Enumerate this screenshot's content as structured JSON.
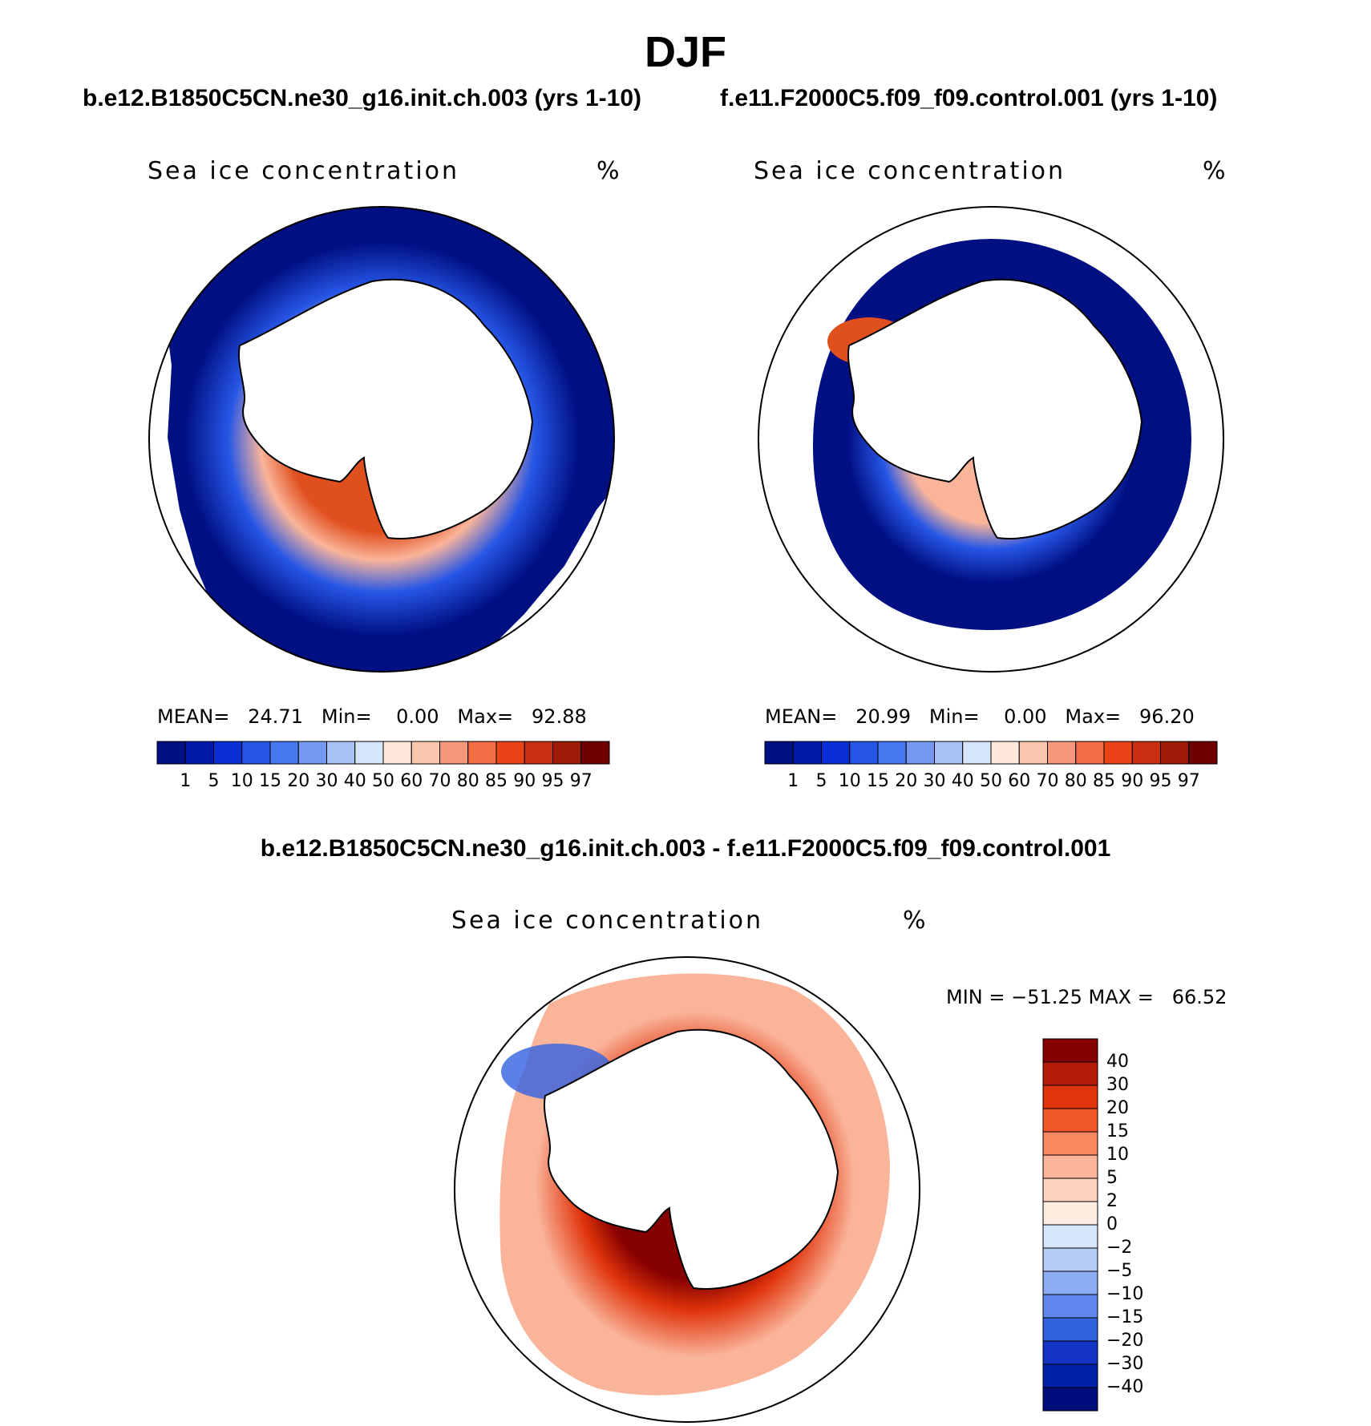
{
  "figure": {
    "season": "DJF",
    "diff_title": "b.e12.B1850C5CN.ne30_g16.init.ch.003 - f.e11.F2000C5.f09_f09.control.001"
  },
  "panels": [
    {
      "case": "b.e12.B1850C5CN.ne30_g16.init.ch.003 (yrs 1-10)",
      "variable": "Sea ice concentration",
      "units": "%",
      "stats": {
        "mean_label": "MEAN=",
        "mean": "24.71",
        "min_label": "Min=",
        "min": "0.00",
        "max_label": "Max=",
        "max": "92.88"
      }
    },
    {
      "case": "f.e11.F2000C5.f09_f09.control.001 (yrs 1-10)",
      "variable": "Sea ice concentration",
      "units": "%",
      "stats": {
        "mean_label": "MEAN=",
        "mean": "20.99",
        "min_label": "Min=",
        "min": "0.00",
        "max_label": "Max=",
        "max": "96.20"
      }
    },
    {
      "case": "",
      "variable": "Sea ice concentration",
      "units": "%",
      "stats": {
        "minmax_text": "MIN = −51.25 MAX =   66.52"
      }
    }
  ],
  "colorbars": {
    "concentration": {
      "levels": [
        "1",
        "5",
        "10",
        "15",
        "20",
        "30",
        "40",
        "50",
        "60",
        "70",
        "80",
        "85",
        "90",
        "95",
        "97"
      ],
      "colors": [
        "#000f82",
        "#0019a8",
        "#0a2fd6",
        "#2656e6",
        "#4577ee",
        "#7598f3",
        "#a8c2f7",
        "#d6e6fa",
        "#fde8da",
        "#f9c7ad",
        "#f5977a",
        "#f26c44",
        "#ea4416",
        "#c82f10",
        "#9c1a06",
        "#6e0000"
      ]
    },
    "difference": {
      "levels": [
        "40",
        "30",
        "20",
        "15",
        "10",
        "5",
        "2",
        "0",
        "−2",
        "−5",
        "−10",
        "−15",
        "−20",
        "−30",
        "−40"
      ],
      "colors": [
        "#850000",
        "#b31c07",
        "#e0350c",
        "#f2582a",
        "#f7885f",
        "#fab49a",
        "#fcd2bf",
        "#fdebe0",
        "#d6e7fb",
        "#b4cdf7",
        "#8cadf3",
        "#5f86eb",
        "#3362e0",
        "#1334c4",
        "#0020a5",
        "#000d7a"
      ]
    }
  },
  "map_colors": {
    "ice_high": "#e0501f",
    "ice_mid": "#fab49a",
    "ice_low": "#2656e6",
    "ice_none": "#000f82",
    "diff_pos_high": "#850000",
    "diff_pos": "#e0350c",
    "diff_pos_low": "#fab49a",
    "diff_neg": "#3362e0"
  }
}
